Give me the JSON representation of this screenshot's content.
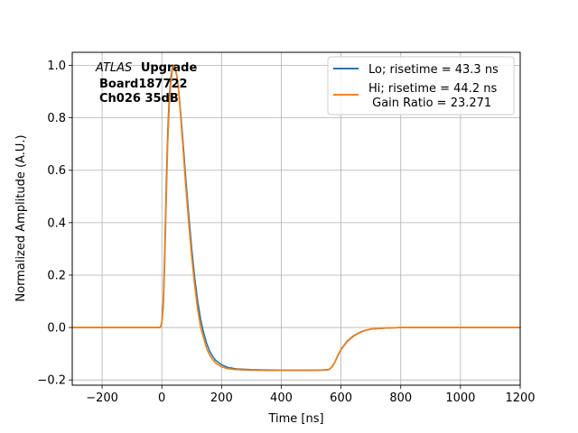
{
  "chart_data": {
    "type": "line",
    "xlabel": "Time [ns]",
    "ylabel": "Normalized Amplitude (A.U.)",
    "xlim": [
      -300,
      1200
    ],
    "ylim": [
      -0.22,
      1.05
    ],
    "xticks": [
      -200,
      0,
      200,
      400,
      600,
      800,
      1000,
      1200
    ],
    "xtick_labels": [
      "−200",
      "0",
      "200",
      "400",
      "600",
      "800",
      "1000",
      "1200"
    ],
    "yticks": [
      -0.2,
      0.0,
      0.2,
      0.4,
      0.6,
      0.8,
      1.0
    ],
    "ytick_labels": [
      "−0.2",
      "0.0",
      "0.2",
      "0.4",
      "0.6",
      "0.8",
      "1.0"
    ],
    "grid": true,
    "legend_position": "top-right",
    "annotation": {
      "line1_italic": "ATLAS",
      "line1_bold": "Upgrade",
      "line2": "Board187722",
      "line3": "Ch026 35dB"
    },
    "series": [
      {
        "name": "Lo; risetime = 43.3 ns",
        "color": "#1f77b4",
        "x": [
          -300,
          -200,
          -100,
          -20,
          -5,
          0,
          5,
          10,
          15,
          20,
          25,
          30,
          35,
          40,
          45,
          50,
          55,
          60,
          70,
          80,
          90,
          100,
          110,
          120,
          130,
          140,
          150,
          160,
          170,
          180,
          200,
          220,
          250,
          300,
          350,
          400,
          450,
          500,
          540,
          560,
          570,
          580,
          590,
          600,
          620,
          640,
          660,
          680,
          700,
          750,
          800,
          900,
          1000,
          1100,
          1200
        ],
        "y": [
          0.0,
          0.0,
          0.0,
          0.0,
          0.0,
          0.02,
          0.1,
          0.3,
          0.55,
          0.75,
          0.88,
          0.95,
          0.99,
          1.0,
          0.99,
          0.96,
          0.92,
          0.86,
          0.72,
          0.57,
          0.43,
          0.3,
          0.19,
          0.1,
          0.03,
          -0.02,
          -0.06,
          -0.09,
          -0.11,
          -0.125,
          -0.142,
          -0.152,
          -0.158,
          -0.161,
          -0.162,
          -0.163,
          -0.163,
          -0.163,
          -0.162,
          -0.16,
          -0.15,
          -0.13,
          -0.105,
          -0.083,
          -0.053,
          -0.033,
          -0.02,
          -0.011,
          -0.006,
          -0.002,
          0.0,
          0.0,
          0.0,
          0.0,
          0.0
        ]
      },
      {
        "name": "Hi; risetime = 44.2 ns\n Gain Ratio = 23.271",
        "color": "#ff7f0e",
        "x": [
          -300,
          -200,
          -100,
          -20,
          -5,
          0,
          5,
          10,
          15,
          20,
          25,
          30,
          35,
          40,
          45,
          50,
          55,
          60,
          70,
          80,
          90,
          100,
          110,
          120,
          130,
          140,
          150,
          160,
          170,
          180,
          200,
          220,
          250,
          300,
          350,
          400,
          450,
          500,
          540,
          560,
          570,
          580,
          590,
          600,
          620,
          640,
          660,
          680,
          700,
          750,
          800,
          900,
          1000,
          1100,
          1200
        ],
        "y": [
          0.0,
          0.0,
          0.0,
          0.0,
          0.0,
          0.015,
          0.08,
          0.26,
          0.5,
          0.71,
          0.85,
          0.93,
          0.98,
          1.0,
          0.99,
          0.96,
          0.92,
          0.85,
          0.7,
          0.54,
          0.4,
          0.27,
          0.16,
          0.07,
          0.0,
          -0.04,
          -0.08,
          -0.105,
          -0.122,
          -0.135,
          -0.15,
          -0.157,
          -0.161,
          -0.163,
          -0.164,
          -0.164,
          -0.164,
          -0.164,
          -0.163,
          -0.161,
          -0.151,
          -0.131,
          -0.107,
          -0.085,
          -0.055,
          -0.035,
          -0.021,
          -0.012,
          -0.006,
          -0.002,
          0.0,
          0.0,
          0.0,
          0.0,
          0.0
        ]
      }
    ]
  }
}
